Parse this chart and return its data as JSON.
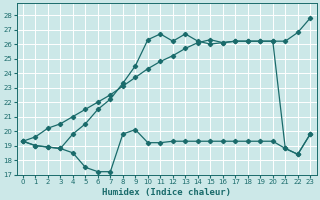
{
  "xlabel": "Humidex (Indice chaleur)",
  "background_color": "#cce8e8",
  "grid_color": "#ffffff",
  "line_color": "#1a6b6b",
  "xlim": [
    -0.5,
    23.5
  ],
  "ylim": [
    17,
    28.8
  ],
  "xticks": [
    0,
    1,
    2,
    3,
    4,
    5,
    6,
    7,
    8,
    9,
    10,
    11,
    12,
    13,
    14,
    15,
    16,
    17,
    18,
    19,
    20,
    21,
    22,
    23
  ],
  "yticks": [
    17,
    18,
    19,
    20,
    21,
    22,
    23,
    24,
    25,
    26,
    27,
    28
  ],
  "series1_x": [
    0,
    1,
    2,
    3,
    4,
    5,
    6,
    7,
    8,
    9,
    10,
    11,
    12,
    13,
    14,
    15,
    16,
    17,
    18,
    19,
    20,
    21,
    22,
    23
  ],
  "series1_y": [
    19.3,
    19.0,
    18.9,
    18.8,
    18.5,
    17.5,
    17.2,
    17.2,
    19.8,
    20.1,
    19.2,
    19.2,
    19.3,
    19.3,
    19.3,
    19.3,
    19.3,
    19.3,
    19.3,
    19.3,
    19.3,
    18.8,
    18.4,
    19.8
  ],
  "series2_x": [
    0,
    1,
    2,
    3,
    4,
    5,
    6,
    7,
    8,
    9,
    10,
    11,
    12,
    13,
    14,
    15,
    16,
    17,
    18,
    19,
    20,
    21,
    22,
    23
  ],
  "series2_y": [
    19.3,
    19.6,
    20.2,
    20.5,
    21.0,
    21.5,
    22.0,
    22.5,
    23.1,
    23.7,
    24.3,
    24.8,
    25.2,
    25.7,
    26.1,
    26.3,
    26.1,
    26.2,
    26.2,
    26.2,
    26.2,
    26.2,
    26.8,
    27.8
  ],
  "series3_x": [
    0,
    1,
    2,
    3,
    4,
    5,
    6,
    7,
    8,
    9,
    10,
    11,
    12,
    13,
    14,
    15,
    16,
    17,
    18,
    19,
    20,
    21,
    22,
    23
  ],
  "series3_y": [
    19.3,
    19.0,
    18.9,
    18.8,
    19.8,
    20.5,
    21.5,
    22.2,
    23.3,
    24.5,
    26.3,
    26.7,
    26.2,
    26.7,
    26.2,
    26.0,
    26.1,
    26.2,
    26.2,
    26.2,
    26.2,
    18.8,
    18.4,
    19.8
  ]
}
